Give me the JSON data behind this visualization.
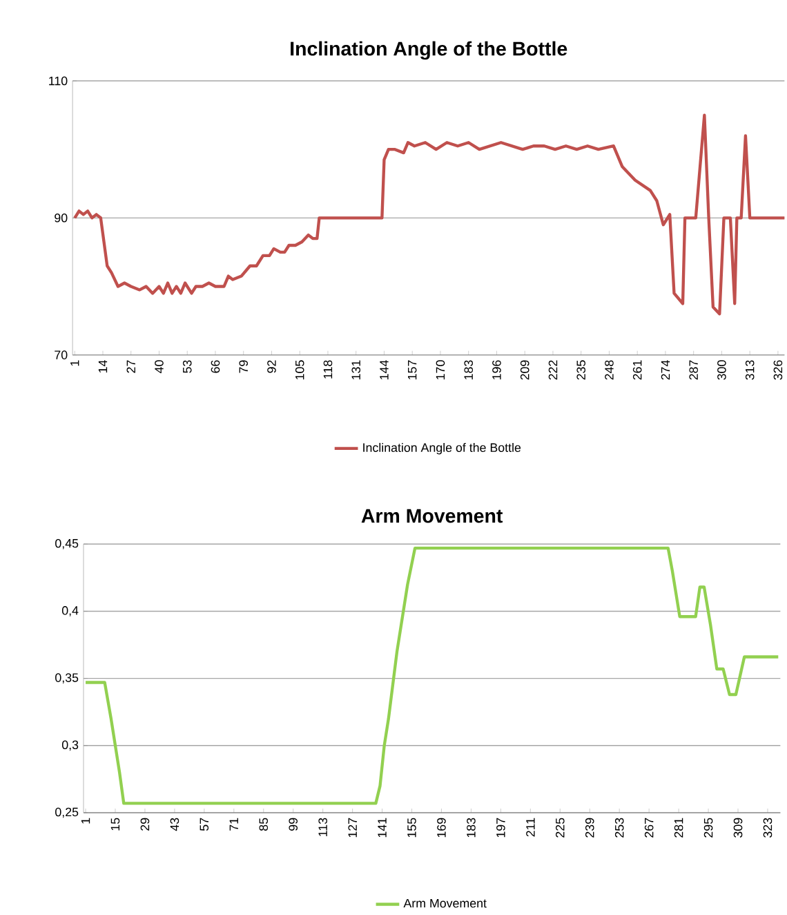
{
  "chart_data": [
    {
      "type": "line",
      "title": "Inclination Angle of the Bottle",
      "series": [
        {
          "name": "Inclination Angle of the Bottle",
          "color": "#c0504d",
          "x": [
            1,
            3,
            5,
            7,
            9,
            11,
            13,
            16,
            18,
            21,
            24,
            27,
            31,
            34,
            37,
            40,
            42,
            44,
            46,
            48,
            50,
            52,
            55,
            57,
            60,
            63,
            66,
            70,
            72,
            74,
            78,
            82,
            85,
            88,
            91,
            93,
            96,
            98,
            100,
            103,
            106,
            109,
            111,
            113,
            114,
            143,
            144,
            146,
            149,
            153,
            155,
            158,
            163,
            168,
            173,
            178,
            183,
            188,
            193,
            198,
            203,
            208,
            213,
            218,
            223,
            228,
            233,
            238,
            243,
            250,
            254,
            260,
            267,
            270,
            273,
            276,
            278,
            282,
            283,
            288,
            292,
            294,
            296,
            299,
            301,
            304,
            306,
            307,
            309,
            311,
            313,
            329
          ],
          "values": [
            90,
            91,
            90.5,
            91,
            90,
            90.5,
            90,
            83,
            82,
            80,
            80.5,
            80,
            79.5,
            80,
            79,
            80,
            79,
            80.5,
            79,
            80,
            79,
            80.5,
            79,
            80,
            80,
            80.5,
            80,
            80,
            81.5,
            81,
            81.5,
            83,
            83,
            84.5,
            84.5,
            85.5,
            85,
            85,
            86,
            86,
            86.5,
            87.5,
            87,
            87,
            90,
            90,
            98.5,
            100,
            100,
            99.5,
            101,
            100.5,
            101,
            100,
            101,
            100.5,
            101,
            100,
            100.5,
            101,
            100.5,
            100,
            100.5,
            100.5,
            100,
            100.5,
            100,
            100.5,
            100,
            100.5,
            97.5,
            95.5,
            94,
            92.5,
            89,
            90.5,
            79,
            77.5,
            90,
            90,
            105,
            90,
            77,
            76,
            90,
            90,
            77.5,
            90,
            90,
            102,
            90,
            90
          ]
        }
      ],
      "xlim": [
        0,
        329
      ],
      "xticks": [
        1,
        14,
        27,
        40,
        53,
        66,
        79,
        92,
        105,
        118,
        131,
        144,
        157,
        170,
        183,
        196,
        209,
        222,
        235,
        248,
        261,
        274,
        287,
        300,
        313,
        326
      ],
      "ylim": [
        70,
        110
      ],
      "yticks": [
        70,
        90,
        110
      ],
      "grid": "y",
      "legend": "bottom",
      "marker": "none",
      "line_style": "solid"
    },
    {
      "type": "line",
      "title": "Arm Movement",
      "series": [
        {
          "name": "Arm Movement",
          "color": "#92d050",
          "x": [
            1,
            10,
            13,
            15,
            17,
            19,
            138,
            140,
            142,
            144,
            146,
            148,
            150,
            153,
            156.5,
            276,
            278,
            281.5,
            289,
            291,
            293,
            296,
            299,
            302,
            305,
            308,
            312,
            328
          ],
          "values": [
            0.347,
            0.347,
            0.32,
            0.3,
            0.28,
            0.257,
            0.257,
            0.27,
            0.3,
            0.32,
            0.345,
            0.37,
            0.39,
            0.42,
            0.447,
            0.447,
            0.43,
            0.396,
            0.396,
            0.418,
            0.418,
            0.39,
            0.357,
            0.357,
            0.338,
            0.338,
            0.366,
            0.366
          ]
        }
      ],
      "xlim": [
        0,
        329
      ],
      "xticks": [
        1,
        15,
        29,
        43,
        57,
        71,
        85,
        99,
        113,
        127,
        141,
        155,
        169,
        183,
        197,
        211,
        225,
        239,
        253,
        267,
        281,
        295,
        309,
        323
      ],
      "ylim": [
        0.25,
        0.45
      ],
      "yticks": [
        {
          "value": 0.25,
          "label": "0,25"
        },
        {
          "value": 0.3,
          "label": "0,3"
        },
        {
          "value": 0.35,
          "label": "0,35"
        },
        {
          "value": 0.4,
          "label": "0,4"
        },
        {
          "value": 0.45,
          "label": "0,45"
        }
      ],
      "grid": "y",
      "legend": "bottom",
      "marker": "none",
      "line_style": "solid"
    }
  ]
}
